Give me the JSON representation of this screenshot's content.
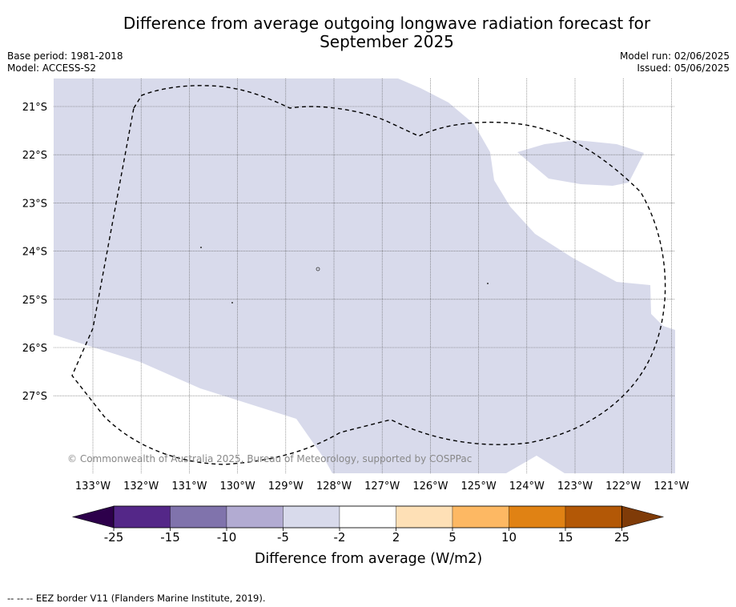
{
  "title_line1": "Difference from average outgoing longwave radiation forecast for",
  "title_line2": "September 2025",
  "meta_left": {
    "base_period": "Base period: 1981-2018",
    "model": "Model: ACCESS-S2"
  },
  "meta_right": {
    "model_run": "Model run: 02/06/2025",
    "issued": "Issued: 05/06/2025"
  },
  "copyright": "© Commonwealth of Australia 2025, Bureau of Meteorology, supported by COSPPac",
  "lat_labels": [
    "21°S",
    "22°S",
    "23°S",
    "24°S",
    "25°S",
    "26°S",
    "27°S"
  ],
  "lon_labels": [
    "133°W",
    "132°W",
    "131°W",
    "130°W",
    "129°W",
    "128°W",
    "127°W",
    "126°W",
    "125°W",
    "124°W",
    "123°W",
    "122°W",
    "121°W"
  ],
  "colorbar": {
    "ticks": [
      "-25",
      "-15",
      "-10",
      "-5",
      "-2",
      "2",
      "5",
      "10",
      "15",
      "25"
    ],
    "colors": [
      "#2d004b",
      "#542788",
      "#8073ac",
      "#b2abd2",
      "#d8daeb",
      "#ffffff",
      "#fee0b6",
      "#fdb863",
      "#e08214",
      "#b35806",
      "#7f3b08"
    ],
    "label": "Difference from average (W/m2)"
  },
  "legend_note": "--  --  -- EEZ border V11 (Flanders Marine Institute, 2019).",
  "map_colors": {
    "light_purple": "#d8daeb",
    "white": "#ffffff"
  }
}
